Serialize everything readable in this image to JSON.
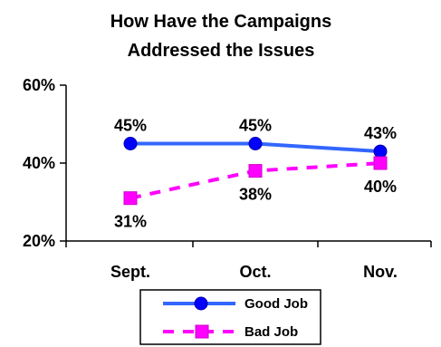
{
  "chart_data": {
    "type": "line",
    "title": "How Have the Campaigns",
    "subtitle": "Addressed the Issues",
    "categories": [
      "Sept.",
      "Oct.",
      "Nov."
    ],
    "series": [
      {
        "name": "Good Job",
        "values": [
          45,
          45,
          43
        ],
        "data_labels": [
          "45%",
          "45%",
          "43%"
        ],
        "color": "#0000ff",
        "line_color": "#3366ff",
        "line_style": "solid",
        "marker": "circle"
      },
      {
        "name": "Bad Job",
        "values": [
          31,
          38,
          40
        ],
        "data_labels": [
          "31%",
          "38%",
          "40%"
        ],
        "color": "#ff00ff",
        "line_style": "dashed",
        "marker": "square"
      }
    ],
    "xlabel": "",
    "ylabel": "",
    "ylim": [
      20,
      60
    ],
    "yticks": [
      20,
      40,
      60
    ],
    "ytick_labels": [
      "20%",
      "40%",
      "60%"
    ],
    "grid": false,
    "legend_position": "bottom"
  }
}
